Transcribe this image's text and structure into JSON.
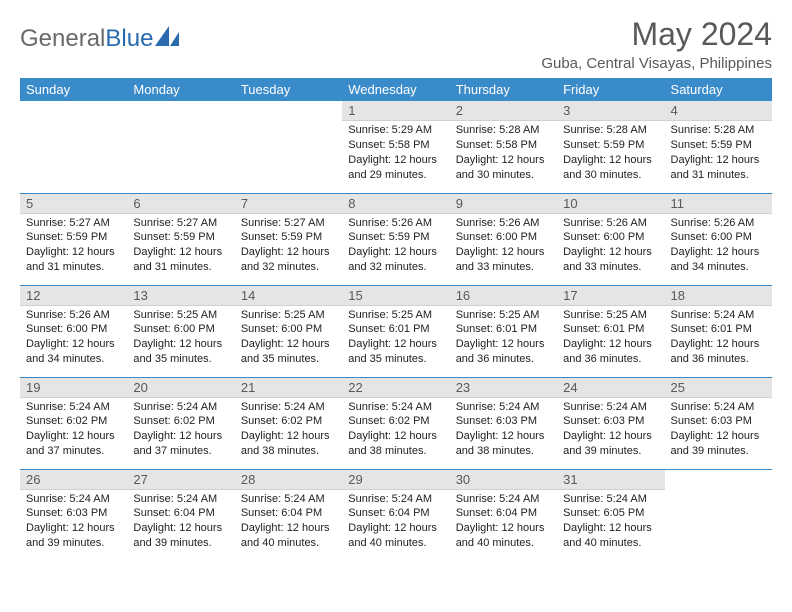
{
  "brand": {
    "gray": "General",
    "blue": "Blue"
  },
  "title": "May 2024",
  "subtitle": "Guba, Central Visayas, Philippines",
  "colors": {
    "header_bg": "#3a8bc9",
    "header_text": "#ffffff",
    "daynum_bg": "#e5e5e5",
    "daynum_text": "#595959",
    "rule": "#3a8bc9",
    "title_text": "#595959"
  },
  "weekdays": [
    "Sunday",
    "Monday",
    "Tuesday",
    "Wednesday",
    "Thursday",
    "Friday",
    "Saturday"
  ],
  "weeks": [
    [
      null,
      null,
      null,
      {
        "n": "1",
        "sr": "Sunrise: 5:29 AM",
        "ss": "Sunset: 5:58 PM",
        "d1": "Daylight: 12 hours",
        "d2": "and 29 minutes."
      },
      {
        "n": "2",
        "sr": "Sunrise: 5:28 AM",
        "ss": "Sunset: 5:58 PM",
        "d1": "Daylight: 12 hours",
        "d2": "and 30 minutes."
      },
      {
        "n": "3",
        "sr": "Sunrise: 5:28 AM",
        "ss": "Sunset: 5:59 PM",
        "d1": "Daylight: 12 hours",
        "d2": "and 30 minutes."
      },
      {
        "n": "4",
        "sr": "Sunrise: 5:28 AM",
        "ss": "Sunset: 5:59 PM",
        "d1": "Daylight: 12 hours",
        "d2": "and 31 minutes."
      }
    ],
    [
      {
        "n": "5",
        "sr": "Sunrise: 5:27 AM",
        "ss": "Sunset: 5:59 PM",
        "d1": "Daylight: 12 hours",
        "d2": "and 31 minutes."
      },
      {
        "n": "6",
        "sr": "Sunrise: 5:27 AM",
        "ss": "Sunset: 5:59 PM",
        "d1": "Daylight: 12 hours",
        "d2": "and 31 minutes."
      },
      {
        "n": "7",
        "sr": "Sunrise: 5:27 AM",
        "ss": "Sunset: 5:59 PM",
        "d1": "Daylight: 12 hours",
        "d2": "and 32 minutes."
      },
      {
        "n": "8",
        "sr": "Sunrise: 5:26 AM",
        "ss": "Sunset: 5:59 PM",
        "d1": "Daylight: 12 hours",
        "d2": "and 32 minutes."
      },
      {
        "n": "9",
        "sr": "Sunrise: 5:26 AM",
        "ss": "Sunset: 6:00 PM",
        "d1": "Daylight: 12 hours",
        "d2": "and 33 minutes."
      },
      {
        "n": "10",
        "sr": "Sunrise: 5:26 AM",
        "ss": "Sunset: 6:00 PM",
        "d1": "Daylight: 12 hours",
        "d2": "and 33 minutes."
      },
      {
        "n": "11",
        "sr": "Sunrise: 5:26 AM",
        "ss": "Sunset: 6:00 PM",
        "d1": "Daylight: 12 hours",
        "d2": "and 34 minutes."
      }
    ],
    [
      {
        "n": "12",
        "sr": "Sunrise: 5:26 AM",
        "ss": "Sunset: 6:00 PM",
        "d1": "Daylight: 12 hours",
        "d2": "and 34 minutes."
      },
      {
        "n": "13",
        "sr": "Sunrise: 5:25 AM",
        "ss": "Sunset: 6:00 PM",
        "d1": "Daylight: 12 hours",
        "d2": "and 35 minutes."
      },
      {
        "n": "14",
        "sr": "Sunrise: 5:25 AM",
        "ss": "Sunset: 6:00 PM",
        "d1": "Daylight: 12 hours",
        "d2": "and 35 minutes."
      },
      {
        "n": "15",
        "sr": "Sunrise: 5:25 AM",
        "ss": "Sunset: 6:01 PM",
        "d1": "Daylight: 12 hours",
        "d2": "and 35 minutes."
      },
      {
        "n": "16",
        "sr": "Sunrise: 5:25 AM",
        "ss": "Sunset: 6:01 PM",
        "d1": "Daylight: 12 hours",
        "d2": "and 36 minutes."
      },
      {
        "n": "17",
        "sr": "Sunrise: 5:25 AM",
        "ss": "Sunset: 6:01 PM",
        "d1": "Daylight: 12 hours",
        "d2": "and 36 minutes."
      },
      {
        "n": "18",
        "sr": "Sunrise: 5:24 AM",
        "ss": "Sunset: 6:01 PM",
        "d1": "Daylight: 12 hours",
        "d2": "and 36 minutes."
      }
    ],
    [
      {
        "n": "19",
        "sr": "Sunrise: 5:24 AM",
        "ss": "Sunset: 6:02 PM",
        "d1": "Daylight: 12 hours",
        "d2": "and 37 minutes."
      },
      {
        "n": "20",
        "sr": "Sunrise: 5:24 AM",
        "ss": "Sunset: 6:02 PM",
        "d1": "Daylight: 12 hours",
        "d2": "and 37 minutes."
      },
      {
        "n": "21",
        "sr": "Sunrise: 5:24 AM",
        "ss": "Sunset: 6:02 PM",
        "d1": "Daylight: 12 hours",
        "d2": "and 38 minutes."
      },
      {
        "n": "22",
        "sr": "Sunrise: 5:24 AM",
        "ss": "Sunset: 6:02 PM",
        "d1": "Daylight: 12 hours",
        "d2": "and 38 minutes."
      },
      {
        "n": "23",
        "sr": "Sunrise: 5:24 AM",
        "ss": "Sunset: 6:03 PM",
        "d1": "Daylight: 12 hours",
        "d2": "and 38 minutes."
      },
      {
        "n": "24",
        "sr": "Sunrise: 5:24 AM",
        "ss": "Sunset: 6:03 PM",
        "d1": "Daylight: 12 hours",
        "d2": "and 39 minutes."
      },
      {
        "n": "25",
        "sr": "Sunrise: 5:24 AM",
        "ss": "Sunset: 6:03 PM",
        "d1": "Daylight: 12 hours",
        "d2": "and 39 minutes."
      }
    ],
    [
      {
        "n": "26",
        "sr": "Sunrise: 5:24 AM",
        "ss": "Sunset: 6:03 PM",
        "d1": "Daylight: 12 hours",
        "d2": "and 39 minutes."
      },
      {
        "n": "27",
        "sr": "Sunrise: 5:24 AM",
        "ss": "Sunset: 6:04 PM",
        "d1": "Daylight: 12 hours",
        "d2": "and 39 minutes."
      },
      {
        "n": "28",
        "sr": "Sunrise: 5:24 AM",
        "ss": "Sunset: 6:04 PM",
        "d1": "Daylight: 12 hours",
        "d2": "and 40 minutes."
      },
      {
        "n": "29",
        "sr": "Sunrise: 5:24 AM",
        "ss": "Sunset: 6:04 PM",
        "d1": "Daylight: 12 hours",
        "d2": "and 40 minutes."
      },
      {
        "n": "30",
        "sr": "Sunrise: 5:24 AM",
        "ss": "Sunset: 6:04 PM",
        "d1": "Daylight: 12 hours",
        "d2": "and 40 minutes."
      },
      {
        "n": "31",
        "sr": "Sunrise: 5:24 AM",
        "ss": "Sunset: 6:05 PM",
        "d1": "Daylight: 12 hours",
        "d2": "and 40 minutes."
      },
      null
    ]
  ]
}
